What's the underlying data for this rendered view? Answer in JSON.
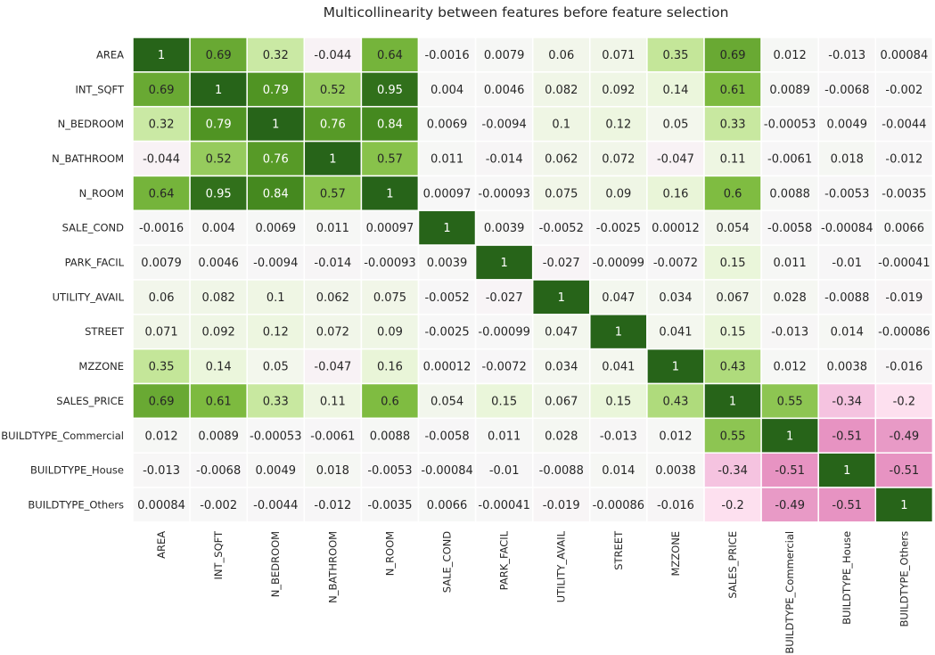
{
  "chart_data": {
    "type": "heatmap",
    "title": "Multicollinearity between features before feature selection",
    "xlabel": "",
    "ylabel": "",
    "colormap": "PiYG",
    "vmin": -1,
    "vmax": 1,
    "annot": true,
    "cell_borders": "#ffffff",
    "colorbar": false,
    "labels": [
      "AREA",
      "INT_SQFT",
      "N_BEDROOM",
      "N_BATHROOM",
      "N_ROOM",
      "SALE_COND",
      "PARK_FACIL",
      "UTILITY_AVAIL",
      "STREET",
      "MZZONE",
      "SALES_PRICE",
      "BUILDTYPE_Commercial",
      "BUILDTYPE_House",
      "BUILDTYPE_Others"
    ],
    "values": [
      [
        "1",
        "0.69",
        "0.32",
        "-0.044",
        "0.64",
        "-0.0016",
        "0.0079",
        "0.06",
        "0.071",
        "0.35",
        "0.69",
        "0.012",
        "-0.013",
        "0.00084"
      ],
      [
        "0.69",
        "1",
        "0.79",
        "0.52",
        "0.95",
        "0.004",
        "0.0046",
        "0.082",
        "0.092",
        "0.14",
        "0.61",
        "0.0089",
        "-0.0068",
        "-0.002"
      ],
      [
        "0.32",
        "0.79",
        "1",
        "0.76",
        "0.84",
        "0.0069",
        "-0.0094",
        "0.1",
        "0.12",
        "0.05",
        "0.33",
        "-0.00053",
        "0.0049",
        "-0.0044"
      ],
      [
        "-0.044",
        "0.52",
        "0.76",
        "1",
        "0.57",
        "0.011",
        "-0.014",
        "0.062",
        "0.072",
        "-0.047",
        "0.11",
        "-0.0061",
        "0.018",
        "-0.012"
      ],
      [
        "0.64",
        "0.95",
        "0.84",
        "0.57",
        "1",
        "0.00097",
        "-0.00093",
        "0.075",
        "0.09",
        "0.16",
        "0.6",
        "0.0088",
        "-0.0053",
        "-0.0035"
      ],
      [
        "-0.0016",
        "0.004",
        "0.0069",
        "0.011",
        "0.00097",
        "1",
        "0.0039",
        "-0.0052",
        "-0.0025",
        "0.00012",
        "0.054",
        "-0.0058",
        "-0.00084",
        "0.0066"
      ],
      [
        "0.0079",
        "0.0046",
        "-0.0094",
        "-0.014",
        "-0.00093",
        "0.0039",
        "1",
        "-0.027",
        "-0.00099",
        "-0.0072",
        "0.15",
        "0.011",
        "-0.01",
        "-0.00041"
      ],
      [
        "0.06",
        "0.082",
        "0.1",
        "0.062",
        "0.075",
        "-0.0052",
        "-0.027",
        "1",
        "0.047",
        "0.034",
        "0.067",
        "0.028",
        "-0.0088",
        "-0.019"
      ],
      [
        "0.071",
        "0.092",
        "0.12",
        "0.072",
        "0.09",
        "-0.0025",
        "-0.00099",
        "0.047",
        "1",
        "0.041",
        "0.15",
        "-0.013",
        "0.014",
        "-0.00086"
      ],
      [
        "0.35",
        "0.14",
        "0.05",
        "-0.047",
        "0.16",
        "0.00012",
        "-0.0072",
        "0.034",
        "0.041",
        "1",
        "0.43",
        "0.012",
        "0.0038",
        "-0.016"
      ],
      [
        "0.69",
        "0.61",
        "0.33",
        "0.11",
        "0.6",
        "0.054",
        "0.15",
        "0.067",
        "0.15",
        "0.43",
        "1",
        "0.55",
        "-0.34",
        "-0.2"
      ],
      [
        "0.012",
        "0.0089",
        "-0.00053",
        "-0.0061",
        "0.0088",
        "-0.0058",
        "0.011",
        "0.028",
        "-0.013",
        "0.012",
        "0.55",
        "1",
        "-0.51",
        "-0.49"
      ],
      [
        "-0.013",
        "-0.0068",
        "0.0049",
        "0.018",
        "-0.0053",
        "-0.00084",
        "-0.01",
        "-0.0088",
        "0.014",
        "0.0038",
        "-0.34",
        "-0.51",
        "1",
        "-0.51"
      ],
      [
        "0.00084",
        "-0.002",
        "-0.0044",
        "-0.012",
        "-0.0035",
        "0.0066",
        "-0.00041",
        "-0.019",
        "-0.00086",
        "-0.016",
        "-0.2",
        "-0.49",
        "-0.51",
        "1"
      ]
    ]
  }
}
